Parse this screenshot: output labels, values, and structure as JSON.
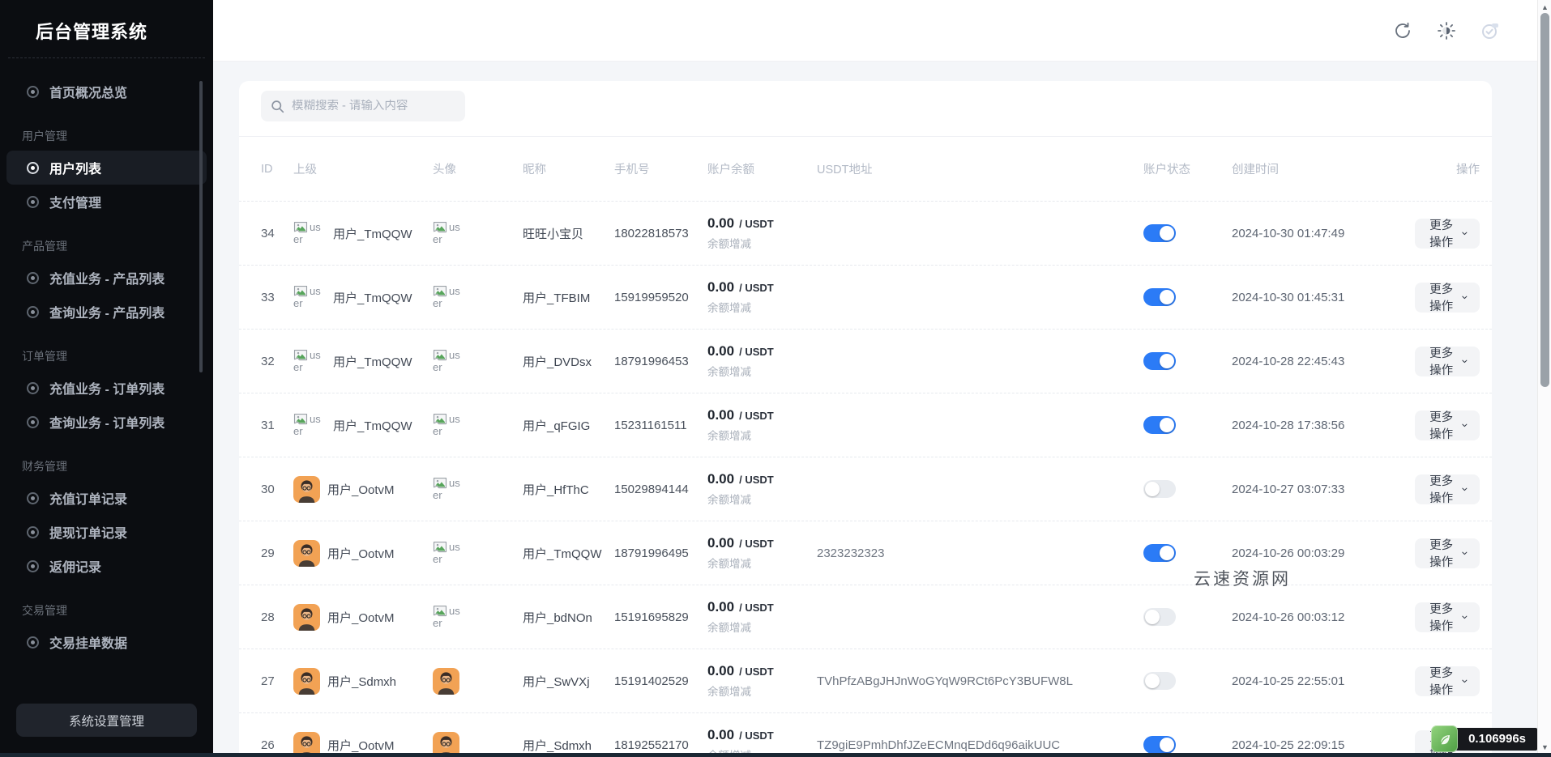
{
  "sidebar": {
    "title": "后台管理系统",
    "home_item": {
      "label": "首页概况总览"
    },
    "sections": [
      {
        "label": "用户管理",
        "items": [
          {
            "label": "用户列表",
            "active": true
          },
          {
            "label": "支付管理"
          }
        ]
      },
      {
        "label": "产品管理",
        "items": [
          {
            "label": "充值业务 - 产品列表"
          },
          {
            "label": "查询业务 - 产品列表"
          }
        ]
      },
      {
        "label": "订单管理",
        "items": [
          {
            "label": "充值业务 - 订单列表"
          },
          {
            "label": "查询业务 - 订单列表"
          }
        ]
      },
      {
        "label": "财务管理",
        "items": [
          {
            "label": "充值订单记录"
          },
          {
            "label": "提现订单记录"
          },
          {
            "label": "返佣记录"
          }
        ]
      },
      {
        "label": "交易管理",
        "items": [
          {
            "label": "交易挂单数据"
          }
        ]
      }
    ],
    "settings_button": "系统设置管理"
  },
  "header": {
    "icons": [
      "refresh-icon",
      "theme-brightness-icon",
      "status-check-icon"
    ]
  },
  "search": {
    "placeholder": "模糊搜索 - 请输入内容"
  },
  "table": {
    "columns": [
      "ID",
      "上级",
      "头像",
      "昵称",
      "手机号",
      "账户余额",
      "USDT地址",
      "账户状态",
      "创建时间",
      "操作"
    ],
    "balance_unit": "/ USDT",
    "balance_action": "余额增减",
    "more_button": "更多操作",
    "broken_alt": "user",
    "rows": [
      {
        "id": 34,
        "parent": "用户_TmQQW",
        "parent_avatar": "broken",
        "avatar": "broken",
        "nickname": "旺旺小宝贝",
        "phone": "18022818573",
        "balance": "0.00",
        "usdt": "",
        "status": true,
        "created": "2024-10-30 01:47:49"
      },
      {
        "id": 33,
        "parent": "用户_TmQQW",
        "parent_avatar": "broken",
        "avatar": "broken",
        "nickname": "用户_TFBIM",
        "phone": "15919959520",
        "balance": "0.00",
        "usdt": "",
        "status": true,
        "created": "2024-10-30 01:45:31"
      },
      {
        "id": 32,
        "parent": "用户_TmQQW",
        "parent_avatar": "broken",
        "avatar": "broken",
        "nickname": "用户_DVDsx",
        "phone": "18791996453",
        "balance": "0.00",
        "usdt": "",
        "status": true,
        "created": "2024-10-28 22:45:43"
      },
      {
        "id": 31,
        "parent": "用户_TmQQW",
        "parent_avatar": "broken",
        "avatar": "broken",
        "nickname": "用户_qFGIG",
        "phone": "15231161511",
        "balance": "0.00",
        "usdt": "",
        "status": true,
        "created": "2024-10-28 17:38:56"
      },
      {
        "id": 30,
        "parent": "用户_OotvM",
        "parent_avatar": "image",
        "avatar": "broken",
        "nickname": "用户_HfThC",
        "phone": "15029894144",
        "balance": "0.00",
        "usdt": "",
        "status": false,
        "created": "2024-10-27 03:07:33"
      },
      {
        "id": 29,
        "parent": "用户_OotvM",
        "parent_avatar": "image",
        "avatar": "broken",
        "nickname": "用户_TmQQW",
        "phone": "18791996495",
        "balance": "0.00",
        "usdt": "2323232323",
        "status": true,
        "created": "2024-10-26 00:03:29"
      },
      {
        "id": 28,
        "parent": "用户_OotvM",
        "parent_avatar": "image",
        "avatar": "broken",
        "nickname": "用户_bdNOn",
        "phone": "15191695829",
        "balance": "0.00",
        "usdt": "",
        "status": false,
        "created": "2024-10-26 00:03:12"
      },
      {
        "id": 27,
        "parent": "用户_Sdmxh",
        "parent_avatar": "image",
        "avatar": "image",
        "nickname": "用户_SwVXj",
        "phone": "15191402529",
        "balance": "0.00",
        "usdt": "TVhPfzABgJHJnWoGYqW9RCt6PcY3BUFW8L",
        "status": false,
        "created": "2024-10-25 22:55:01"
      },
      {
        "id": 26,
        "parent": "用户_OotvM",
        "parent_avatar": "image",
        "avatar": "image",
        "nickname": "用户_Sdmxh",
        "phone": "18192552170",
        "balance": "0.00",
        "usdt": "TZ9giE9PmhDhfJZeECMnqEDd6q96aikUUC",
        "status": true,
        "created": "2024-10-25 22:09:15"
      }
    ]
  },
  "watermark": "云速资源网",
  "debug": {
    "time": "0.106996s"
  },
  "icons": {
    "search": "search-icon",
    "chevron_down": "chevron-down-icon",
    "menu_ring": "menu-ring-icon",
    "broken_image": "broken-image-icon",
    "debug_logo": "green-leaf-icon",
    "scroll_up": "scroll-up-icon",
    "scroll_down": "scroll-down-icon"
  },
  "colors": {
    "toggle_on": "#2b7bf6",
    "sidebar_bg": "#0b0d11",
    "accent_green": "#4d9e43"
  }
}
